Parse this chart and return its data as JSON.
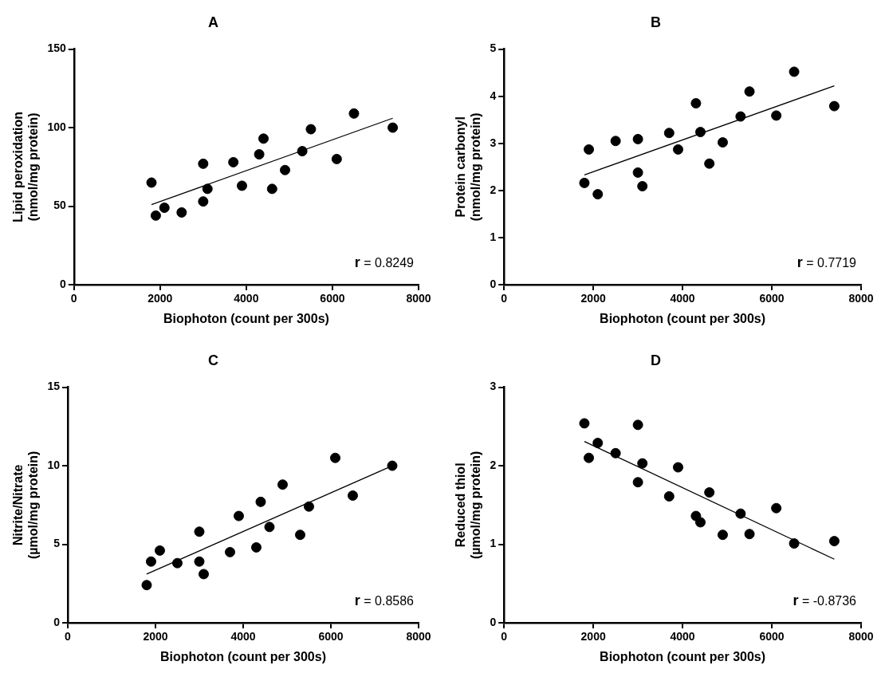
{
  "chart_data": [
    {
      "type": "scatter",
      "title": "A",
      "xlabel": "Biophoton (count per 300s)",
      "ylabel": "Lipid peroxidation\n(nmol/mg protein)",
      "xlim": [
        0,
        8000
      ],
      "xticks": [
        0,
        2000,
        4000,
        6000,
        8000
      ],
      "ylim": [
        0,
        150
      ],
      "yticks": [
        0,
        50,
        100,
        150
      ],
      "grid": false,
      "annotations": [
        "r = 0.8249"
      ],
      "series": [
        {
          "marker": "circle",
          "color": "#000000",
          "x": [
            1800,
            1900,
            2100,
            2500,
            3000,
            3000,
            3100,
            3700,
            3900,
            4300,
            4400,
            4600,
            4900,
            5300,
            5500,
            6100,
            6500,
            7400
          ],
          "values": [
            65,
            44,
            49,
            46,
            77,
            53,
            61,
            78,
            63,
            83,
            93,
            61,
            73,
            85,
            99,
            80,
            109,
            100
          ]
        },
        {
          "type": "line",
          "color": "#000000",
          "x": [
            1800,
            7400
          ],
          "values": [
            51,
            106
          ]
        }
      ]
    },
    {
      "type": "scatter",
      "title": "B",
      "xlabel": "Biophoton (count per 300s)",
      "ylabel": "Protein carbonyl\n(nmol/mg protein)",
      "xlim": [
        0,
        8000
      ],
      "xticks": [
        0,
        2000,
        4000,
        6000,
        8000
      ],
      "ylim": [
        0,
        5
      ],
      "yticks": [
        0,
        1,
        2,
        3,
        4,
        5
      ],
      "grid": false,
      "annotations": [
        "r = 0.7719"
      ],
      "series": [
        {
          "marker": "circle",
          "color": "#000000",
          "x": [
            1800,
            1900,
            2100,
            2500,
            3000,
            3000,
            3100,
            3700,
            3900,
            4300,
            4400,
            4600,
            4900,
            5300,
            5500,
            6100,
            6500,
            7400
          ],
          "values": [
            2.16,
            2.87,
            1.92,
            3.05,
            3.09,
            2.38,
            2.09,
            3.22,
            2.87,
            3.85,
            3.24,
            2.57,
            3.02,
            3.57,
            4.1,
            3.59,
            4.52,
            3.79
          ]
        },
        {
          "type": "line",
          "color": "#000000",
          "x": [
            1800,
            7400
          ],
          "values": [
            2.33,
            4.22
          ]
        }
      ]
    },
    {
      "type": "scatter",
      "title": "C",
      "xlabel": "Biophoton (count per 300s)",
      "ylabel": "Nitrite/Nitrate\n(µmol/mg protein)",
      "xlim": [
        0,
        8000
      ],
      "xticks": [
        0,
        2000,
        4000,
        6000,
        8000
      ],
      "ylim": [
        0,
        15
      ],
      "yticks": [
        0,
        5,
        10,
        15
      ],
      "grid": false,
      "annotations": [
        "r = 0.8586"
      ],
      "series": [
        {
          "marker": "circle",
          "color": "#000000",
          "x": [
            1800,
            1900,
            2100,
            2500,
            3000,
            3000,
            3100,
            3700,
            3900,
            4300,
            4400,
            4600,
            4900,
            5300,
            5500,
            6100,
            6500,
            7400
          ],
          "values": [
            2.4,
            3.9,
            4.6,
            3.8,
            5.8,
            3.9,
            3.1,
            4.5,
            6.8,
            4.8,
            7.7,
            6.1,
            8.8,
            5.6,
            7.4,
            10.5,
            8.1,
            10
          ]
        },
        {
          "type": "line",
          "color": "#000000",
          "x": [
            1800,
            7400
          ],
          "values": [
            3.1,
            10
          ]
        }
      ]
    },
    {
      "type": "scatter",
      "title": "D",
      "xlabel": "Biophoton (count per 300s)",
      "ylabel": "Reduced thiol\n(µmol/mg protein)",
      "xlim": [
        0,
        8000
      ],
      "xticks": [
        0,
        2000,
        4000,
        6000,
        8000
      ],
      "ylim": [
        0,
        3
      ],
      "yticks": [
        0,
        1,
        2,
        3
      ],
      "grid": false,
      "annotations": [
        "r = -0.8736"
      ],
      "series": [
        {
          "marker": "circle",
          "color": "#000000",
          "x": [
            1800,
            1900,
            2100,
            2500,
            3000,
            3000,
            3100,
            3700,
            3900,
            4300,
            4400,
            4600,
            4900,
            5300,
            5500,
            6100,
            6500,
            7400
          ],
          "values": [
            2.54,
            2.1,
            2.29,
            2.16,
            2.52,
            1.79,
            2.03,
            1.61,
            1.98,
            1.36,
            1.28,
            1.66,
            1.12,
            1.39,
            1.13,
            1.46,
            1.01,
            1.04
          ]
        },
        {
          "type": "line",
          "color": "#000000",
          "x": [
            1800,
            7400
          ],
          "values": [
            2.31,
            0.81
          ]
        }
      ]
    }
  ]
}
